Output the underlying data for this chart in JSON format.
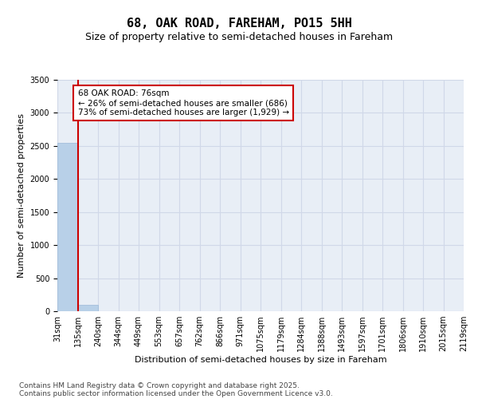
{
  "title": "68, OAK ROAD, FAREHAM, PO15 5HH",
  "subtitle": "Size of property relative to semi-detached houses in Fareham",
  "xlabel": "Distribution of semi-detached houses by size in Fareham",
  "ylabel": "Number of semi-detached properties",
  "bar_values": [
    2550,
    100,
    0,
    0,
    0,
    0,
    0,
    0,
    0,
    0,
    0,
    0,
    0,
    0,
    0,
    0,
    0,
    0,
    0,
    0
  ],
  "bin_labels": [
    "31sqm",
    "135sqm",
    "240sqm",
    "344sqm",
    "449sqm",
    "553sqm",
    "657sqm",
    "762sqm",
    "866sqm",
    "971sqm",
    "1075sqm",
    "1179sqm",
    "1284sqm",
    "1388sqm",
    "1493sqm",
    "1597sqm",
    "1701sqm",
    "1806sqm",
    "1910sqm",
    "2015sqm",
    "2119sqm"
  ],
  "bar_color": "#b8d0e8",
  "bar_edge_color": "#9ab8d8",
  "grid_color": "#d0d8e8",
  "background_color": "#e8eef6",
  "vline_color": "#cc0000",
  "annotation_text": "68 OAK ROAD: 76sqm\n← 26% of semi-detached houses are smaller (686)\n73% of semi-detached houses are larger (1,929) →",
  "annotation_box_color": "#cc0000",
  "ylim": [
    0,
    3500
  ],
  "footer_line1": "Contains HM Land Registry data © Crown copyright and database right 2025.",
  "footer_line2": "Contains public sector information licensed under the Open Government Licence v3.0.",
  "title_fontsize": 11,
  "subtitle_fontsize": 9,
  "axis_label_fontsize": 8,
  "tick_fontsize": 7,
  "annotation_fontsize": 7.5,
  "footer_fontsize": 6.5
}
